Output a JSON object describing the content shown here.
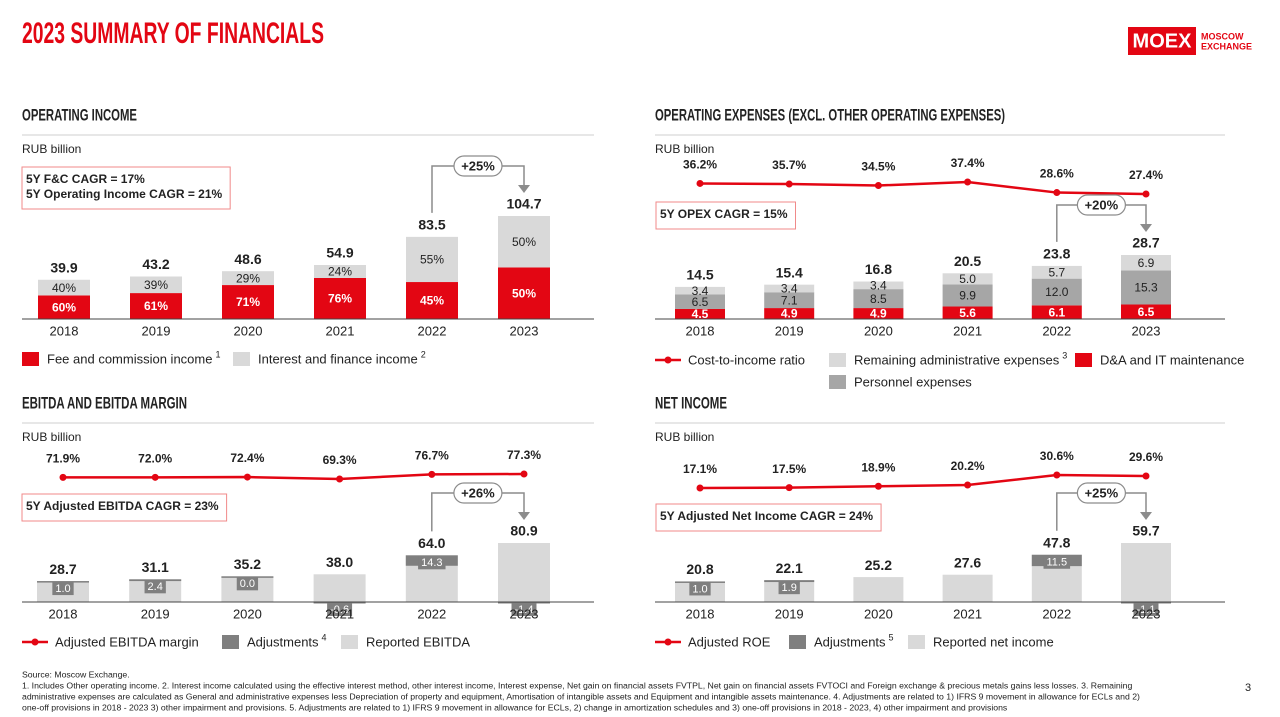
{
  "title": "2023 SUMMARY OF FINANCIALS",
  "logo": {
    "mark": "MOEX",
    "lines": [
      "MOSCOW",
      "EXCHANGE"
    ]
  },
  "page_number": "3",
  "footnotes": {
    "source": "Source: Moscow Exchange.",
    "lines": [
      "1. Includes Other operating income. 2. Interest income calculated using the effective interest method, other interest income, Interest expense, Net gain on financial assets FVTPL, Net gain on financial assets FVTOCI and Foreign exchange & precious metals gains less losses. 3. Remaining",
      "administrative expenses are calculated as General and administrative expenses less Depreciation of property and equipment, Amortisation of intangible assets and Equipment and intangible assets maintenance. 4. Adjustments are related to 1) IFRS 9 movement in allowance for ECLs and 2)",
      "one-off provisions in 2018 - 2023 3) other impairment and provisions. 5. Adjustments are related to 1) IFRS 9 movement in allowance for ECLs, 2) change in amortization schedules and 3) one-off provisions in 2018 - 2023, 4) other impairment and provisions"
    ]
  },
  "chart_data": [
    {
      "type": "bar",
      "stacked": true,
      "stack_mode": "percent",
      "title": "OPERATING INCOME",
      "unit": "RUB billion",
      "annotations": [
        "5Y F&C CAGR = 17%",
        "5Y Operating Income CAGR = 21%"
      ],
      "growth_label": "+25%",
      "categories": [
        "2018",
        "2019",
        "2020",
        "2021",
        "2022",
        "2023"
      ],
      "totals": [
        39.9,
        43.2,
        48.6,
        54.9,
        83.5,
        104.7
      ],
      "series": [
        {
          "name": "Fee and commission income",
          "note": "1",
          "color": "#e30613",
          "values": [
            60,
            61,
            71,
            76,
            45,
            50
          ],
          "value_labels": [
            "60%",
            "61%",
            "71%",
            "76%",
            "45%",
            "50%"
          ]
        },
        {
          "name": "Interest and finance income",
          "note": "2",
          "color": "#d9d9d9",
          "values": [
            40,
            39,
            29,
            24,
            55,
            50
          ],
          "value_labels": [
            "40%",
            "39%",
            "29%",
            "24%",
            "55%",
            "50%"
          ]
        }
      ]
    },
    {
      "type": "bar",
      "stacked": true,
      "title": "OPERATING EXPENSES (EXCL. OTHER OPERATING EXPENSES)",
      "unit": "RUB billion",
      "annotations": [
        "5Y OPEX CAGR = 15%"
      ],
      "growth_label": "+20%",
      "categories": [
        "2018",
        "2019",
        "2020",
        "2021",
        "2022",
        "2023"
      ],
      "totals": [
        14.5,
        15.4,
        16.8,
        20.5,
        23.8,
        28.7
      ],
      "series": [
        {
          "name": "D&A and IT maintenance",
          "color": "#e30613",
          "values": [
            4.5,
            4.9,
            4.9,
            5.6,
            6.1,
            6.5
          ]
        },
        {
          "name": "Personnel expenses",
          "color": "#a6a6a6",
          "values": [
            6.5,
            7.1,
            8.5,
            9.9,
            12,
            15.3
          ],
          "value_labels": [
            "6.5",
            "7.1",
            "8.5",
            "9.9",
            "12.0",
            "15.3"
          ]
        },
        {
          "name": "Remaining administrative expenses",
          "note": "3",
          "color": "#d9d9d9",
          "values": [
            3.4,
            3.4,
            3.4,
            5,
            5.7,
            6.9
          ],
          "value_labels": [
            "3.4",
            "3.4",
            "3.4",
            "5.0",
            "5.7",
            "6.9"
          ]
        },
        {
          "name": "Cost-to-income ratio",
          "kind": "line",
          "color": "#e30613",
          "values": [
            36.2,
            35.7,
            34.5,
            37.4,
            28.6,
            27.4
          ],
          "value_labels": [
            "36.2%",
            "35.7%",
            "34.5%",
            "37.4%",
            "28.6%",
            "27.4%"
          ]
        }
      ]
    },
    {
      "type": "bar",
      "title": "EBITDA AND EBITDA MARGIN",
      "unit": "RUB billion",
      "annotations": [
        "5Y Adjusted EBITDA CAGR = 23%"
      ],
      "growth_label": "+26%",
      "categories": [
        "2018",
        "2019",
        "2020",
        "2021",
        "2022",
        "2023"
      ],
      "series": [
        {
          "name": "Adjusted EBITDA margin",
          "kind": "line",
          "color": "#e30613",
          "values": [
            71.9,
            72,
            72.4,
            69.3,
            76.7,
            77.3
          ],
          "value_labels": [
            "71.9%",
            "72.0%",
            "72.4%",
            "69.3%",
            "76.7%",
            "77.3%"
          ]
        },
        {
          "name": "Adjustments",
          "note": "4",
          "kind": "adjustment",
          "color": "#7f7f7f",
          "values": [
            1,
            2.4,
            0,
            -0.6,
            14.3,
            -1.4
          ],
          "value_labels": [
            "1.0",
            "2.4",
            "0.0",
            "-0.6",
            "14.3",
            "-1.4"
          ]
        },
        {
          "name": "Reported EBITDA",
          "color": "#d9d9d9",
          "values": [
            28.7,
            31.1,
            35.2,
            38,
            64,
            80.9
          ],
          "value_labels": [
            "28.7",
            "31.1",
            "35.2",
            "38.0",
            "64.0",
            "80.9"
          ]
        }
      ]
    },
    {
      "type": "bar",
      "title": "NET INCOME",
      "unit": "RUB billion",
      "annotations": [
        "5Y Adjusted Net Income CAGR = 24%"
      ],
      "growth_label": "+25%",
      "categories": [
        "2018",
        "2019",
        "2020",
        "2021",
        "2022",
        "2023"
      ],
      "series": [
        {
          "name": "Adjusted ROE",
          "kind": "line",
          "color": "#e30613",
          "values": [
            17.1,
            17.5,
            18.9,
            20.2,
            30.6,
            29.6
          ],
          "value_labels": [
            "17.1%",
            "17.5%",
            "18.9%",
            "20.2%",
            "30.6%",
            "29.6%"
          ]
        },
        {
          "name": "Adjustments",
          "note": "5",
          "kind": "adjustment",
          "color": "#7f7f7f",
          "values": [
            1,
            1.9,
            null,
            null,
            11.5,
            -1.1
          ],
          "value_labels": [
            "1.0",
            "1.9",
            null,
            null,
            "11.5",
            "-1.1"
          ]
        },
        {
          "name": "Reported net income",
          "color": "#d9d9d9",
          "values": [
            20.8,
            22.1,
            25.2,
            27.6,
            47.8,
            59.7
          ]
        }
      ]
    }
  ]
}
